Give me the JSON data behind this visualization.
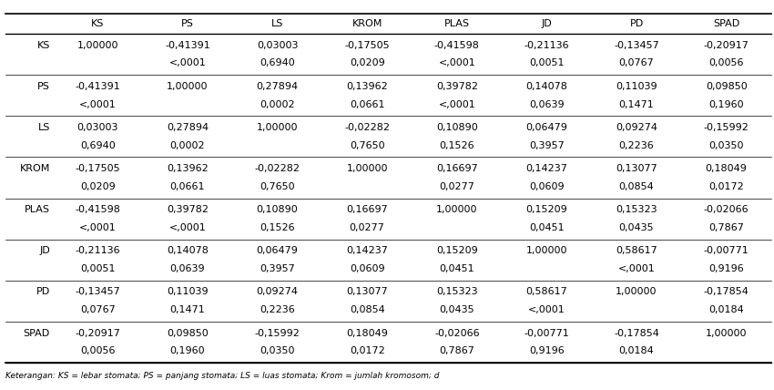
{
  "col_headers": [
    "",
    "KS",
    "PS",
    "LS",
    "KROM",
    "PLAS",
    "JD",
    "PD",
    "SPAD"
  ],
  "row_headers": [
    "KS",
    "PS",
    "LS",
    "KROM",
    "PLAS",
    "JD",
    "PD",
    "SPAD"
  ],
  "cell_data": [
    [
      [
        "1,00000",
        ""
      ],
      [
        "-0,41391",
        "<,0001"
      ],
      [
        "0,03003",
        "0,6940"
      ],
      [
        "-0,17505",
        "0,0209"
      ],
      [
        "-0,41598",
        "<,0001"
      ],
      [
        "-0,21136",
        "0,0051"
      ],
      [
        "-0,13457",
        "0,0767"
      ],
      [
        "-0,20917",
        "0,0056"
      ]
    ],
    [
      [
        "-0,41391",
        "<,0001"
      ],
      [
        "1,00000",
        ""
      ],
      [
        "0,27894",
        "0,0002"
      ],
      [
        "0,13962",
        "0,0661"
      ],
      [
        "0,39782",
        "<,0001"
      ],
      [
        "0,14078",
        "0,0639"
      ],
      [
        "0,11039",
        "0,1471"
      ],
      [
        "0,09850",
        "0,1960"
      ]
    ],
    [
      [
        "0,03003",
        "0,6940"
      ],
      [
        "0,27894",
        "0,0002"
      ],
      [
        "1,00000",
        ""
      ],
      [
        "-0,02282",
        "0,7650"
      ],
      [
        "0,10890",
        "0,1526"
      ],
      [
        "0,06479",
        "0,3957"
      ],
      [
        "0,09274",
        "0,2236"
      ],
      [
        "-0,15992",
        "0,0350"
      ]
    ],
    [
      [
        "-0,17505",
        "0,0209"
      ],
      [
        "0,13962",
        "0,0661"
      ],
      [
        "-0,02282",
        "0,7650"
      ],
      [
        "1,00000",
        ""
      ],
      [
        "0,16697",
        "0,0277"
      ],
      [
        "0,14237",
        "0,0609"
      ],
      [
        "0,13077",
        "0,0854"
      ],
      [
        "0,18049",
        "0,0172"
      ]
    ],
    [
      [
        "-0,41598",
        "<,0001"
      ],
      [
        "0,39782",
        "<,0001"
      ],
      [
        "0,10890",
        "0,1526"
      ],
      [
        "0,16697",
        "0,0277"
      ],
      [
        "1,00000",
        ""
      ],
      [
        "0,15209",
        "0,0451"
      ],
      [
        "0,15323",
        "0,0435"
      ],
      [
        "-0,02066",
        "0,7867"
      ]
    ],
    [
      [
        "-0,21136",
        "0,0051"
      ],
      [
        "0,14078",
        "0,0639"
      ],
      [
        "0,06479",
        "0,3957"
      ],
      [
        "0,14237",
        "0,0609"
      ],
      [
        "0,15209",
        "0,0451"
      ],
      [
        "1,00000",
        ""
      ],
      [
        "0,58617",
        "<,0001"
      ],
      [
        "-0,00771",
        "0,9196"
      ]
    ],
    [
      [
        "-0,13457",
        "0,0767"
      ],
      [
        "0,11039",
        "0,1471"
      ],
      [
        "0,09274",
        "0,2236"
      ],
      [
        "0,13077",
        "0,0854"
      ],
      [
        "0,15323",
        "0,0435"
      ],
      [
        "0,58617",
        "<,0001"
      ],
      [
        "1,00000",
        ""
      ],
      [
        "-0,17854",
        "0,0184"
      ]
    ],
    [
      [
        "-0,20917",
        "0,0056"
      ],
      [
        "0,09850",
        "0,1960"
      ],
      [
        "-0,15992",
        "0,0350"
      ],
      [
        "0,18049",
        "0,0172"
      ],
      [
        "-0,02066",
        "0,7867"
      ],
      [
        "-0,00771",
        "0,9196"
      ],
      [
        "-0,17854",
        "0,0184"
      ],
      [
        "1,00000",
        ""
      ]
    ]
  ],
  "footer_text": "Keterangan: KS = lebar stomata; PS = panjang stomata; LS = luas stomata; Krom = jumlah kromosom; d",
  "bg_color": "#ffffff",
  "line_color": "#000000",
  "text_color": "#000000",
  "font_size": 8.0,
  "header_font_size": 8.0
}
